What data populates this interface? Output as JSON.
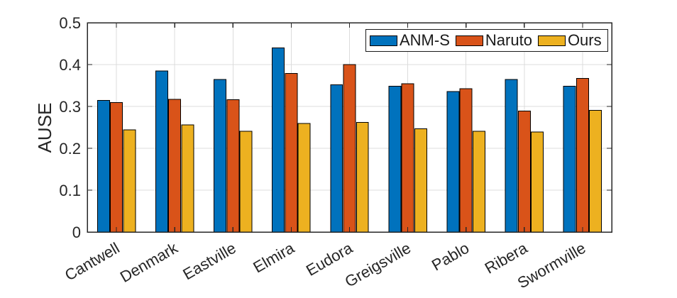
{
  "chart_data": {
    "type": "bar",
    "title": "",
    "xlabel": "",
    "ylabel": "AUSE",
    "categories": [
      "Cantwell",
      "Denmark",
      "Eastville",
      "Elmira",
      "Eudora",
      "Greigsville",
      "Pablo",
      "Ribera",
      "Swormville"
    ],
    "series": [
      {
        "name": "ANM-S",
        "color": "#0072BD",
        "values": [
          0.314,
          0.385,
          0.364,
          0.44,
          0.352,
          0.348,
          0.336,
          0.364,
          0.348
        ]
      },
      {
        "name": "Naruto",
        "color": "#D95319",
        "values": [
          0.309,
          0.317,
          0.316,
          0.379,
          0.4,
          0.354,
          0.342,
          0.289,
          0.367
        ]
      },
      {
        "name": "Ours",
        "color": "#EDB120",
        "values": [
          0.244,
          0.256,
          0.241,
          0.259,
          0.262,
          0.247,
          0.241,
          0.239,
          0.291
        ]
      }
    ],
    "ylim": [
      0,
      0.5
    ],
    "yticks": [
      0,
      0.1,
      0.2,
      0.3,
      0.4,
      0.5
    ],
    "ytick_labels": [
      "0",
      "0.1",
      "0.2",
      "0.3",
      "0.4",
      "0.5"
    ],
    "xtick_rotation_deg": 30,
    "grid": true,
    "legend": {
      "position": "top-right-inside",
      "orientation": "horizontal",
      "entries": [
        "ANM-S",
        "Naruto",
        "Ours"
      ]
    },
    "styles": {
      "bar_edge_color": "#000000",
      "grid_color": "#dcdcdc",
      "axis_color": "#262626",
      "background": "#ffffff"
    }
  }
}
